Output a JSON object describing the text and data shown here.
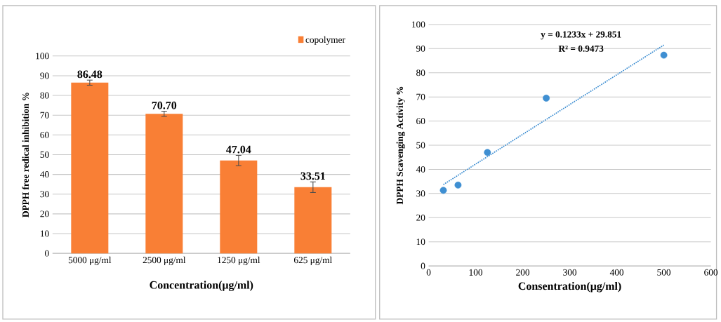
{
  "chart_data": [
    {
      "type": "bar",
      "ylabel": "DPPH free redical inhibition  %",
      "xlabel": "Concentration(μg/ml)",
      "categories": [
        "5000 μg/ml",
        "2500 μg/ml",
        "1250 μg/ml",
        "625 μg/ml"
      ],
      "series": [
        {
          "name": "copolymer",
          "color": "#f97f35",
          "values": [
            86.48,
            70.7,
            47.04,
            33.51
          ],
          "errors": [
            1.3,
            1.3,
            2.6,
            2.7
          ],
          "value_labels": [
            "86.48",
            "70.70",
            "47.04",
            "33.51"
          ]
        }
      ],
      "ylim": [
        0,
        100
      ],
      "yticks": [
        0,
        10,
        20,
        30,
        40,
        50,
        60,
        70,
        80,
        90,
        100
      ],
      "grid": "y",
      "legend": "top right"
    },
    {
      "type": "scatter",
      "ylabel": "DPPH Scavenging Activity %",
      "xlabel": "Consentration(μg/ml)",
      "series": [
        {
          "x": [
            31.25,
            62.5,
            125,
            250,
            500
          ],
          "values": [
            31.3,
            33.5,
            47,
            69.5,
            87.3
          ],
          "color": "#3f8fd2",
          "marker": "circle"
        },
        {
          "type": "line",
          "x": [
            31.25,
            500
          ],
          "values": [
            33.7,
            91.5
          ],
          "color": "#3f8fd2",
          "line_style": "dotted",
          "marker": "none"
        }
      ],
      "annotations": [
        "y = 0.1233x + 29.851",
        "R² = 0.9473"
      ],
      "xlim": [
        0,
        600
      ],
      "xticks": [
        0,
        100,
        200,
        300,
        400,
        500,
        600
      ],
      "ylim": [
        0,
        100
      ],
      "yticks": [
        0,
        10,
        20,
        30,
        40,
        50,
        60,
        70,
        80,
        90,
        100
      ],
      "grid": "y"
    }
  ]
}
